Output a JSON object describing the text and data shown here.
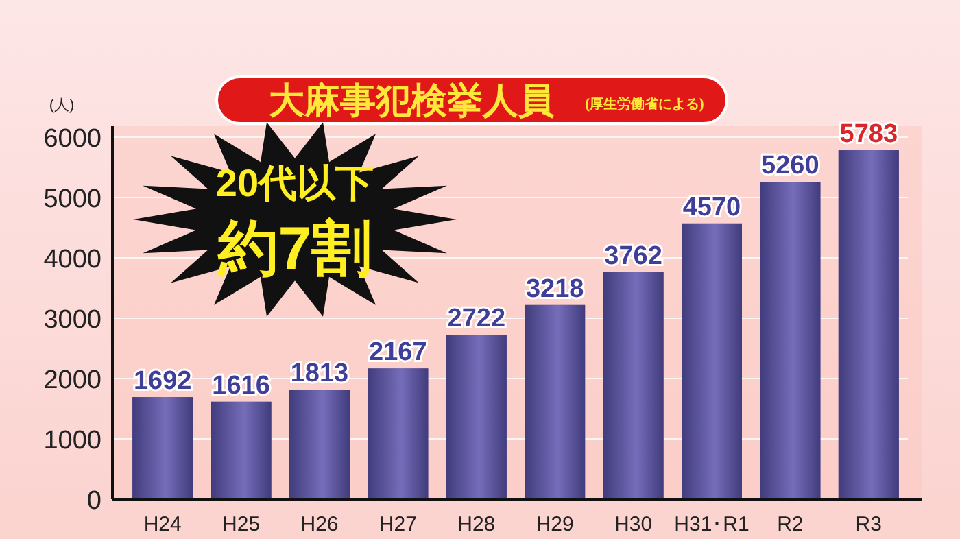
{
  "chart_data": {
    "type": "bar",
    "title": "大麻事犯検挙人員",
    "subtitle": "(厚生労働省による)",
    "ylabel": "(人)",
    "annotations": [
      "20代以下",
      "約7割"
    ],
    "categories": [
      "H24",
      "H25",
      "H26",
      "H27",
      "H28",
      "H29",
      "H30",
      "H31･R1",
      "R2",
      "R3"
    ],
    "values": [
      1692,
      1616,
      1813,
      2167,
      2722,
      3218,
      3762,
      4570,
      5260,
      5783
    ],
    "color": "#5a5296",
    "ylim": [
      0,
      6000
    ],
    "yticks": [
      0,
      1000,
      2000,
      3000,
      4000,
      5000,
      6000
    ],
    "grid": "y",
    "data_labels": true
  }
}
